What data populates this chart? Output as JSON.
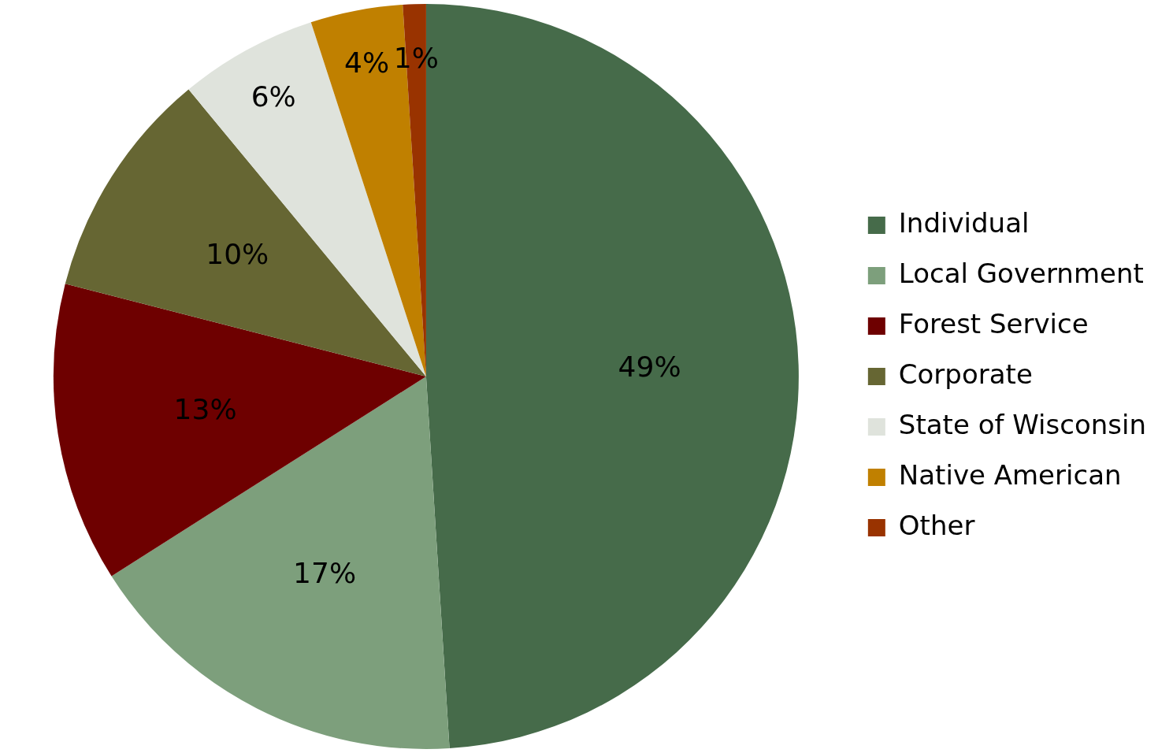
{
  "chart_data": {
    "type": "pie",
    "categories": [
      "Individual",
      "Local Government",
      "Forest Service",
      "Corporate",
      "State of Wisconsin",
      "Native American",
      "Other"
    ],
    "values": [
      49,
      17,
      13,
      10,
      6,
      4,
      1
    ],
    "colors": [
      "#466b4a",
      "#7d9f7c",
      "#6e0000",
      "#666633",
      "#dfe3dc",
      "#c08000",
      "#993300"
    ],
    "value_labels": [
      "49%",
      "17%",
      "13%",
      "10%",
      "6%",
      "4%",
      "1%"
    ],
    "legend": "right"
  }
}
